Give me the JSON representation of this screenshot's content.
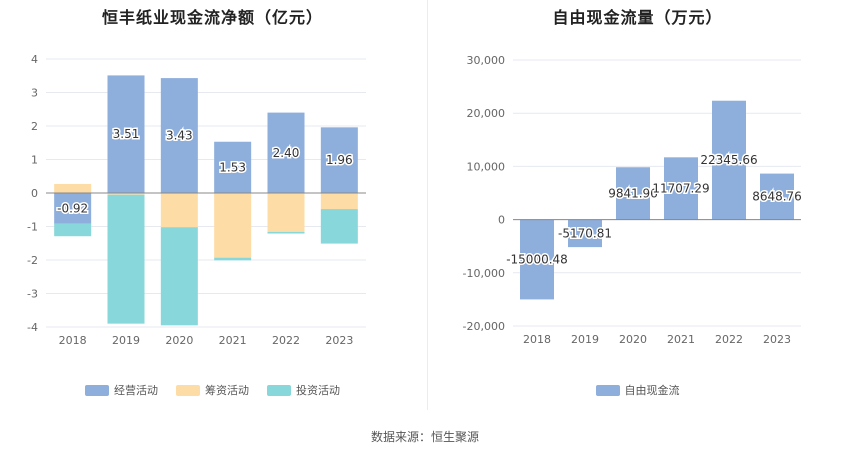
{
  "chart_data": [
    {
      "type": "bar",
      "stacked": true,
      "title": "恒丰纸业现金流净额（亿元）",
      "categories": [
        "2018",
        "2019",
        "2020",
        "2021",
        "2022",
        "2023"
      ],
      "series": [
        {
          "name": "经营活动",
          "color": "#8eaedc",
          "values": [
            -0.92,
            3.51,
            3.43,
            1.53,
            2.4,
            1.96
          ],
          "labels": [
            "-0.92",
            "3.51",
            "3.43",
            "1.53",
            "2.40",
            "1.96"
          ]
        },
        {
          "name": "筹资活动",
          "color": "#fedca6",
          "values": [
            0.27,
            -0.05,
            -1.02,
            -1.93,
            -1.16,
            -0.48
          ]
        },
        {
          "name": "投资活动",
          "color": "#88d7da",
          "values": [
            -0.37,
            -3.85,
            -2.93,
            -0.08,
            -0.05,
            -1.03
          ]
        }
      ],
      "ylim": [
        -4,
        4
      ],
      "yticks": [
        "4",
        "3",
        "2",
        "1",
        "0",
        "-1",
        "-2",
        "-3",
        "-4"
      ],
      "grid": true,
      "legend": "bottom"
    },
    {
      "type": "bar",
      "title": "自由现金流量（万元）",
      "categories": [
        "2018",
        "2019",
        "2020",
        "2021",
        "2022",
        "2023"
      ],
      "series": [
        {
          "name": "自由现金流",
          "color": "#8eaedc",
          "values": [
            -15000.48,
            -5170.81,
            9841.96,
            11707.29,
            22345.66,
            8648.76
          ],
          "labels": [
            "-15000.48",
            "-5170.81",
            "9841.96",
            "11707.29",
            "22345.66",
            "8648.76"
          ]
        }
      ],
      "ylim": [
        -20000,
        30000
      ],
      "yticks": [
        "30,000",
        "20,000",
        "10,000",
        "0",
        "-10,000",
        "-20,000"
      ],
      "grid": true,
      "legend": "bottom"
    }
  ],
  "footer": {
    "source": "数据来源：恒生聚源"
  }
}
